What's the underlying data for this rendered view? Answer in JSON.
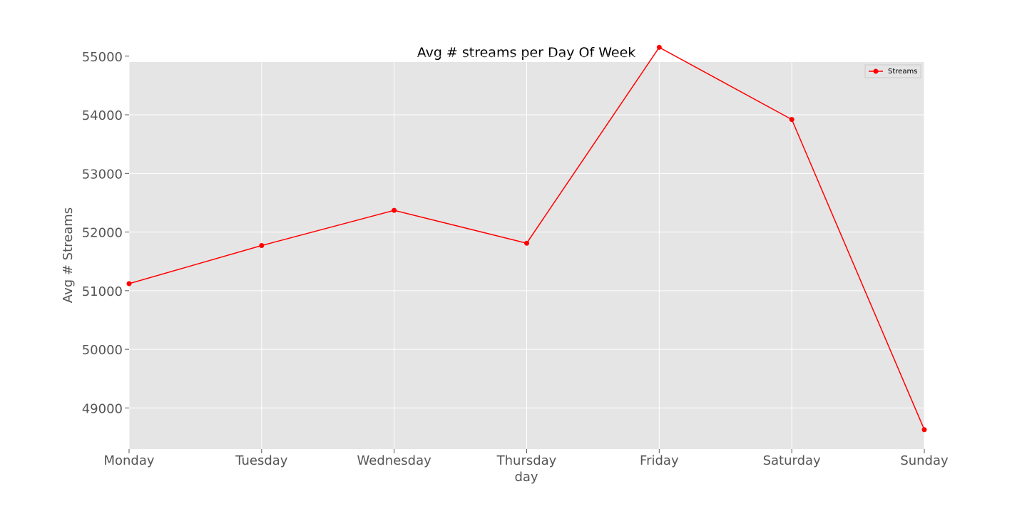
{
  "chart_data": {
    "type": "line",
    "title": "Avg # streams per Day Of Week",
    "xlabel": "day",
    "ylabel": "Avg # Streams",
    "categories": [
      "Monday",
      "Tuesday",
      "Wednesday",
      "Thursday",
      "Friday",
      "Saturday",
      "Sunday"
    ],
    "series": [
      {
        "name": "Streams",
        "values": [
          51120,
          51770,
          52370,
          51810,
          55150,
          53920,
          48630
        ],
        "color": "#ff0000"
      }
    ],
    "ylim": [
      48300,
      54900
    ],
    "yticks": [
      49000,
      50000,
      51000,
      52000,
      53000,
      54000,
      55000
    ],
    "grid": true,
    "legend_position": "top-right",
    "colors": {
      "plot_background": "#e5e5e5",
      "grid": "#ffffff",
      "tick_text": "#555555"
    }
  }
}
